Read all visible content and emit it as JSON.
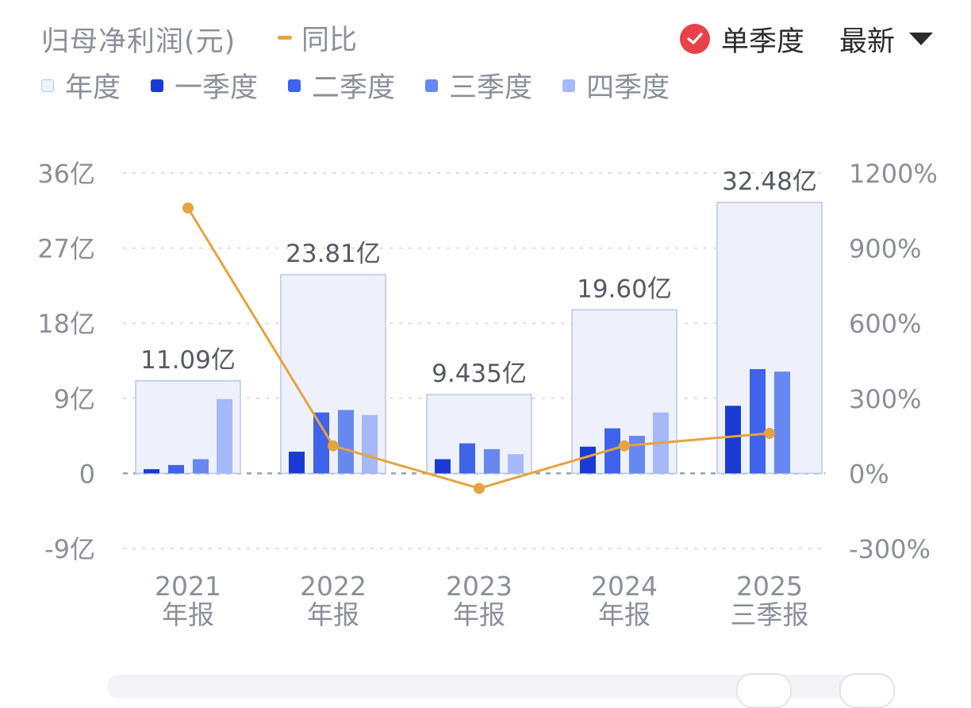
{
  "header": {
    "title": "归母净利润(元)",
    "yoy_legend": "同比",
    "single_quarter_label": "单季度",
    "latest_label": "最新"
  },
  "legend": [
    {
      "label": "年度",
      "color": "#eef1fb"
    },
    {
      "label": "一季度",
      "color": "#1a3bd3"
    },
    {
      "label": "二季度",
      "color": "#3f63ea"
    },
    {
      "label": "三季度",
      "color": "#6688f0"
    },
    {
      "label": "四季度",
      "color": "#a5b8f7"
    }
  ],
  "chart_data": {
    "type": "bar",
    "categories": [
      [
        "2021",
        "年报"
      ],
      [
        "2022",
        "年报"
      ],
      [
        "2023",
        "年报"
      ],
      [
        "2024",
        "年报"
      ],
      [
        "2025",
        "三季报"
      ]
    ],
    "annual_values": [
      11.09,
      23.81,
      9.435,
      19.6,
      32.48
    ],
    "annual_labels": [
      "11.09亿",
      "23.81亿",
      "9.435亿",
      "19.60亿",
      "32.48亿"
    ],
    "series": [
      {
        "name": "一季度",
        "values": [
          0.5,
          2.6,
          1.7,
          3.2,
          8.1
        ]
      },
      {
        "name": "二季度",
        "values": [
          1.0,
          7.3,
          3.6,
          5.4,
          12.5
        ]
      },
      {
        "name": "三季度",
        "values": [
          1.7,
          7.6,
          2.9,
          4.5,
          12.2
        ]
      },
      {
        "name": "四季度",
        "values": [
          8.9,
          7.0,
          2.3,
          7.3,
          null
        ]
      }
    ],
    "yoy": [
      1060,
      110,
      -60,
      110,
      160
    ],
    "left_axis": {
      "ticks": [
        "36亿",
        "27亿",
        "18亿",
        "9亿",
        "0",
        "-9亿"
      ],
      "min": -9,
      "max": 36
    },
    "right_axis": {
      "ticks": [
        "1200%",
        "900%",
        "600%",
        "300%",
        "0%",
        "-300%"
      ],
      "min": -300,
      "max": 1200
    },
    "colors": {
      "annual_fill": "#eef1fb",
      "annual_stroke": "#b9c6ec",
      "q1": "#1a3bd3",
      "q2": "#3f63ea",
      "q3": "#6688f0",
      "q4": "#a5b8f7",
      "yoy_line": "#e8a23f",
      "axis_text": "#8a8f99",
      "value_text": "#555a63",
      "grid": "#dcdfe6",
      "zero_line": "#9aa0a8"
    }
  }
}
